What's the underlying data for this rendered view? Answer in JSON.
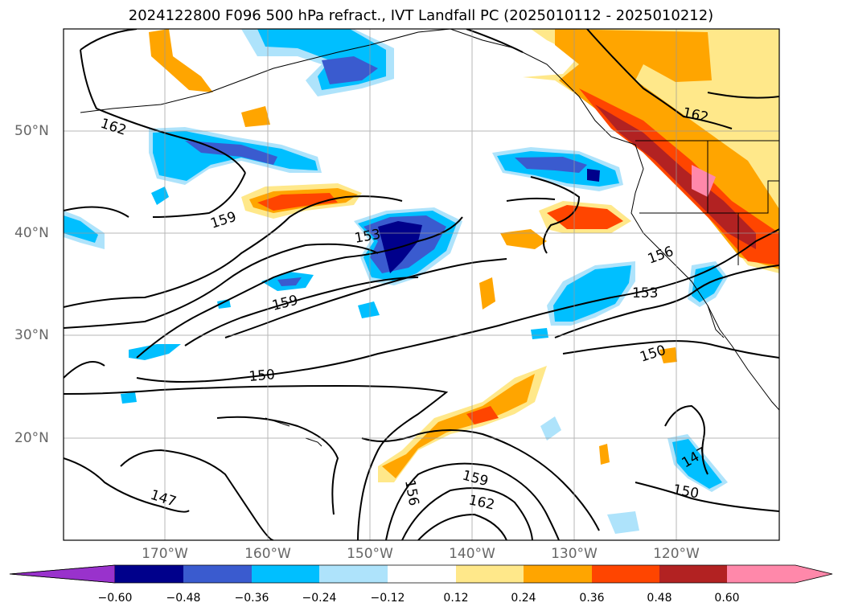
{
  "title": "2024122800 F096 500 hPa refract., IVT Landfall PC (2025010112 - 2025010212)",
  "lat_labels": [
    "50°N",
    "40°N",
    "30°N",
    "20°N"
  ],
  "lon_labels": [
    "170°W",
    "160°W",
    "150°W",
    "140°W",
    "130°W",
    "120°W"
  ],
  "contour_labels": [
    "162",
    "159",
    "159",
    "153",
    "159",
    "150",
    "147",
    "156",
    "153",
    "150",
    "162",
    "147",
    "150",
    "159",
    "162",
    "156"
  ],
  "colorbar": {
    "ticks": [
      "−0.60",
      "−0.48",
      "−0.36",
      "−0.24",
      "−0.12",
      "0.12",
      "0.24",
      "0.36",
      "0.48",
      "0.60"
    ],
    "colors": [
      "#9932cc",
      "#00008b",
      "#3a5bcf",
      "#00bfff",
      "#aee3fb",
      "#ffffff",
      "#ffe88a",
      "#ffa500",
      "#ff4500",
      "#b22222",
      "#ff88aa"
    ]
  }
}
